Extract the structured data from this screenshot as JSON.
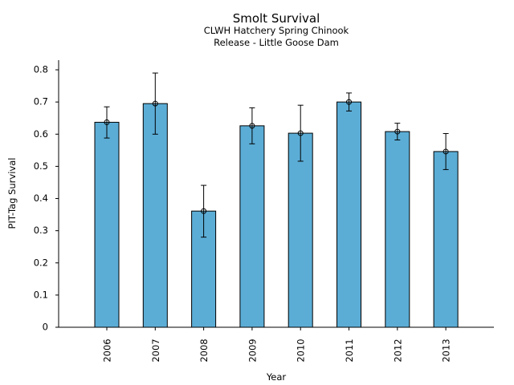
{
  "chart_data": {
    "type": "bar",
    "title": "Smolt Survival",
    "subtitle_lines": [
      "CLWH Hatchery Spring Chinook",
      "Release - Little Goose Dam"
    ],
    "xlabel": "Year",
    "ylabel": "PIT-Tag Survival",
    "categories": [
      "2006",
      "2007",
      "2008",
      "2009",
      "2010",
      "2011",
      "2012",
      "2013"
    ],
    "values": [
      0.637,
      0.695,
      0.361,
      0.626,
      0.603,
      0.7,
      0.608,
      0.546
    ],
    "error_lower": [
      0.588,
      0.6,
      0.28,
      0.57,
      0.516,
      0.672,
      0.582,
      0.49
    ],
    "error_upper": [
      0.685,
      0.79,
      0.441,
      0.682,
      0.69,
      0.728,
      0.634,
      0.602
    ],
    "ylim": [
      0,
      0.83
    ],
    "yticks": [
      0,
      0.1,
      0.2,
      0.3,
      0.4,
      0.5,
      0.6,
      0.7,
      0.8
    ],
    "ytick_labels": [
      "0",
      "0.1",
      "0.2",
      "0.3",
      "0.4",
      "0.5",
      "0.6",
      "0.7",
      "0.8"
    ],
    "grid": false,
    "legend": "none",
    "bar_color": "#5badd6",
    "edge_color": "#000000"
  }
}
